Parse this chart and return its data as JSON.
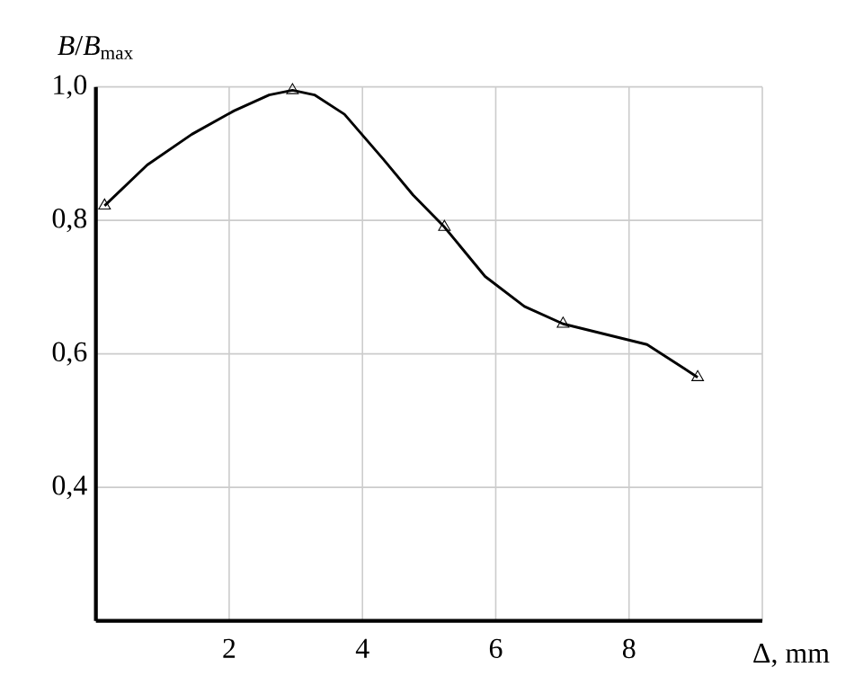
{
  "chart_data": {
    "type": "line",
    "xlabel": "Δ, mm",
    "ylabel": "*B*/*B*$_{max}$",
    "xlim": [
      0,
      10
    ],
    "ylim": [
      0.2,
      1.0
    ],
    "xticks": [
      {
        "value": 0,
        "label": null
      },
      2,
      4,
      6,
      8,
      {
        "value": 10,
        "label": null
      }
    ],
    "yticks": [
      {
        "value": 0.2,
        "label": null
      },
      {
        "value": 0.4,
        "label": "0,4"
      },
      {
        "value": 0.6,
        "label": "0,6"
      },
      {
        "value": 0.8,
        "label": "0,8"
      },
      {
        "value": 1.0,
        "label": "1,0"
      }
    ],
    "grid": true,
    "series": [
      {
        "color": "#000000",
        "marker": "none",
        "line_style": "solid",
        "x": [
          0.13,
          0.77,
          1.44,
          2.07,
          2.6,
          2.95,
          3.28,
          3.73,
          4.31,
          4.76,
          5.23,
          5.84,
          6.43,
          7.01,
          8.27,
          9.03
        ],
        "values": [
          0.822,
          0.883,
          0.929,
          0.964,
          0.988,
          0.995,
          0.988,
          0.959,
          0.892,
          0.838,
          0.79,
          0.716,
          0.671,
          0.645,
          0.614,
          0.565
        ]
      },
      {
        "type": "scatter",
        "color": "#000000",
        "marker": "triangle",
        "x": [
          0.13,
          2.95,
          5.23,
          7.01,
          9.03
        ],
        "values": [
          0.822,
          0.995,
          0.79,
          0.645,
          0.565
        ]
      }
    ]
  }
}
